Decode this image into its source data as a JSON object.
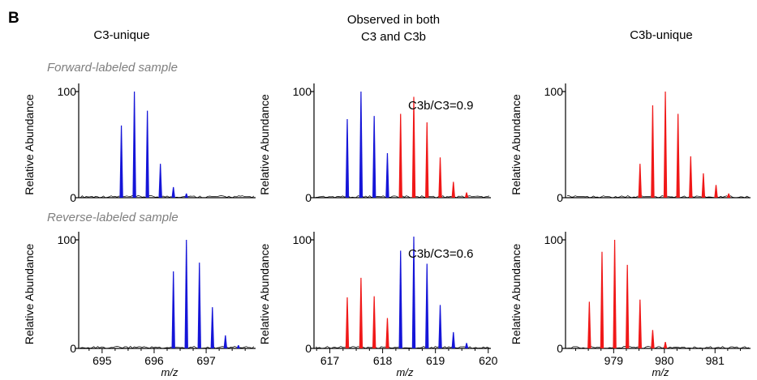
{
  "panel_label": "B",
  "column_titles": {
    "left": "C3-unique",
    "middle_line1": "Observed in both",
    "middle_line2": "C3 and C3b",
    "right": "C3b-unique"
  },
  "row_titles": {
    "forward": "Forward-labeled sample",
    "reverse": "Reverse-labeled sample"
  },
  "colors": {
    "blue": "#1515d8",
    "red": "#f01818",
    "noise": "#000000",
    "row_title": "#7f7f7f"
  },
  "chart_data": [
    {
      "id": "fwd-c3",
      "type": "bar",
      "ylabel": "Relative Abundance",
      "ylim": [
        0,
        100
      ],
      "yticks": [
        0,
        100
      ],
      "xlim": [
        694.55,
        697.95
      ],
      "peaks": [
        {
          "x": 695.37,
          "y": 68,
          "color": "blue"
        },
        {
          "x": 695.62,
          "y": 100,
          "color": "blue"
        },
        {
          "x": 695.87,
          "y": 82,
          "color": "blue"
        },
        {
          "x": 696.12,
          "y": 32,
          "color": "blue"
        },
        {
          "x": 696.37,
          "y": 10,
          "color": "blue"
        },
        {
          "x": 696.62,
          "y": 4,
          "color": "blue"
        }
      ]
    },
    {
      "id": "fwd-both",
      "type": "bar",
      "ylabel": "Relative Abundance",
      "ylim": [
        0,
        100
      ],
      "yticks": [
        0,
        100
      ],
      "xlim": [
        616.7,
        620.05
      ],
      "annotation": "C3b/C3=0.9",
      "peaks": [
        {
          "x": 617.33,
          "y": 74,
          "color": "blue"
        },
        {
          "x": 617.59,
          "y": 100,
          "color": "blue"
        },
        {
          "x": 617.84,
          "y": 77,
          "color": "blue"
        },
        {
          "x": 618.09,
          "y": 42,
          "color": "blue"
        },
        {
          "x": 618.34,
          "y": 79,
          "color": "red"
        },
        {
          "x": 618.59,
          "y": 95,
          "color": "red"
        },
        {
          "x": 618.84,
          "y": 71,
          "color": "red"
        },
        {
          "x": 619.09,
          "y": 38,
          "color": "red"
        },
        {
          "x": 619.34,
          "y": 15,
          "color": "red"
        },
        {
          "x": 619.59,
          "y": 5,
          "color": "red"
        }
      ]
    },
    {
      "id": "fwd-c3b",
      "type": "bar",
      "ylabel": "Relative Abundance",
      "ylim": [
        0,
        100
      ],
      "yticks": [
        0,
        100
      ],
      "xlim": [
        978.05,
        981.7
      ],
      "peaks": [
        {
          "x": 979.52,
          "y": 32,
          "color": "red"
        },
        {
          "x": 979.77,
          "y": 87,
          "color": "red"
        },
        {
          "x": 980.02,
          "y": 100,
          "color": "red"
        },
        {
          "x": 980.27,
          "y": 79,
          "color": "red"
        },
        {
          "x": 980.52,
          "y": 39,
          "color": "red"
        },
        {
          "x": 980.77,
          "y": 23,
          "color": "red"
        },
        {
          "x": 981.02,
          "y": 12,
          "color": "red"
        },
        {
          "x": 981.27,
          "y": 4,
          "color": "red"
        }
      ]
    },
    {
      "id": "rev-c3",
      "type": "bar",
      "ylabel": "Relative Abundance",
      "ylim": [
        0,
        100
      ],
      "yticks": [
        0,
        100
      ],
      "xlim": [
        694.55,
        697.95
      ],
      "xticks": [
        695,
        696,
        697
      ],
      "xlabel": "m/z",
      "peaks": [
        {
          "x": 696.37,
          "y": 71,
          "color": "blue"
        },
        {
          "x": 696.62,
          "y": 100,
          "color": "blue"
        },
        {
          "x": 696.87,
          "y": 79,
          "color": "blue"
        },
        {
          "x": 697.12,
          "y": 38,
          "color": "blue"
        },
        {
          "x": 697.37,
          "y": 12,
          "color": "blue"
        },
        {
          "x": 697.62,
          "y": 3,
          "color": "blue"
        }
      ]
    },
    {
      "id": "rev-both",
      "type": "bar",
      "ylabel": "Relative Abundance",
      "ylim": [
        0,
        100
      ],
      "yticks": [
        0,
        100
      ],
      "xlim": [
        616.7,
        620.05
      ],
      "xticks": [
        617,
        618,
        619,
        620
      ],
      "xlabel": "m/z",
      "annotation": "C3b/C3=0.6",
      "peaks": [
        {
          "x": 617.33,
          "y": 47,
          "color": "red"
        },
        {
          "x": 617.59,
          "y": 65,
          "color": "red"
        },
        {
          "x": 617.84,
          "y": 48,
          "color": "red"
        },
        {
          "x": 618.09,
          "y": 28,
          "color": "red"
        },
        {
          "x": 618.34,
          "y": 90,
          "color": "blue"
        },
        {
          "x": 618.59,
          "y": 103,
          "color": "blue"
        },
        {
          "x": 618.84,
          "y": 78,
          "color": "blue"
        },
        {
          "x": 619.09,
          "y": 40,
          "color": "blue"
        },
        {
          "x": 619.34,
          "y": 15,
          "color": "blue"
        },
        {
          "x": 619.59,
          "y": 5,
          "color": "blue"
        }
      ]
    },
    {
      "id": "rev-c3b",
      "type": "bar",
      "ylabel": "Relative Abundance",
      "ylim": [
        0,
        100
      ],
      "yticks": [
        0,
        100
      ],
      "xlim": [
        978.05,
        981.7
      ],
      "xticks": [
        979,
        980,
        981
      ],
      "xlabel": "m/z",
      "peaks": [
        {
          "x": 978.52,
          "y": 43,
          "color": "red"
        },
        {
          "x": 978.77,
          "y": 89,
          "color": "red"
        },
        {
          "x": 979.02,
          "y": 100,
          "color": "red"
        },
        {
          "x": 979.27,
          "y": 77,
          "color": "red"
        },
        {
          "x": 979.52,
          "y": 45,
          "color": "red"
        },
        {
          "x": 979.77,
          "y": 17,
          "color": "red"
        },
        {
          "x": 980.02,
          "y": 6,
          "color": "red"
        }
      ]
    }
  ]
}
